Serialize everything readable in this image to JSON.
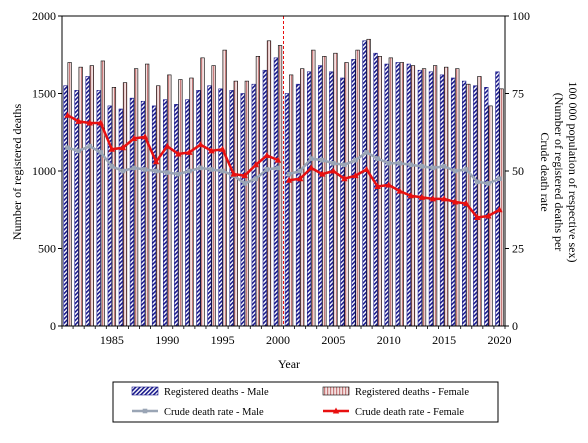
{
  "chart_data": {
    "type": "bar",
    "x": [
      1981,
      1982,
      1983,
      1984,
      1985,
      1986,
      1987,
      1988,
      1989,
      1990,
      1991,
      1992,
      1993,
      1994,
      1995,
      1996,
      1997,
      1998,
      1999,
      2000,
      2001,
      2002,
      2003,
      2004,
      2005,
      2006,
      2007,
      2008,
      2009,
      2010,
      2011,
      2012,
      2013,
      2014,
      2015,
      2016,
      2017,
      2018,
      2019,
      2020
    ],
    "xlabel": "Year",
    "ylabel": "Number of registered deaths",
    "y2label_line1": "Crude death rate",
    "y2label_line2": "(Number of registered deaths per",
    "y2label_line3": "100 000 population of respective sex)",
    "ylim": [
      0,
      2000
    ],
    "y2lim": [
      0,
      100
    ],
    "xticks": [
      1985,
      1990,
      1995,
      2000,
      2005,
      2010,
      2015,
      2020
    ],
    "yticks": [
      0,
      500,
      1000,
      1500,
      2000
    ],
    "y2ticks": [
      0,
      25,
      50,
      75,
      100
    ],
    "vline_x": 2000.5,
    "grid": false,
    "legend_position": "bottom",
    "series": [
      {
        "name": "Registered deaths - Male",
        "kind": "bar",
        "axis": "left",
        "color": "#1a1a8c",
        "values": [
          1550,
          1520,
          1610,
          1520,
          1420,
          1400,
          1470,
          1450,
          1420,
          1460,
          1430,
          1460,
          1520,
          1550,
          1530,
          1520,
          1500,
          1560,
          1650,
          1730,
          1500,
          1560,
          1640,
          1680,
          1640,
          1600,
          1720,
          1840,
          1760,
          1690,
          1700,
          1690,
          1650,
          1640,
          1620,
          1600,
          1580,
          1550,
          1540,
          1640
        ]
      },
      {
        "name": "Registered deaths - Female",
        "kind": "bar",
        "axis": "left",
        "color": "#c77b7b",
        "values": [
          1700,
          1670,
          1680,
          1710,
          1540,
          1570,
          1660,
          1690,
          1550,
          1620,
          1590,
          1600,
          1730,
          1680,
          1780,
          1580,
          1580,
          1740,
          1840,
          1810,
          1620,
          1660,
          1780,
          1740,
          1760,
          1700,
          1780,
          1850,
          1740,
          1730,
          1700,
          1680,
          1660,
          1680,
          1670,
          1660,
          1560,
          1610,
          1420,
          1530
        ]
      },
      {
        "name": "Crude death rate - Male",
        "kind": "line",
        "axis": "right",
        "color": "#9aa5b5",
        "values": [
          57.5,
          56.5,
          58,
          56,
          51.5,
          50,
          51,
          50.5,
          50,
          49.5,
          49,
          50,
          51,
          50.5,
          50,
          48.5,
          46,
          47.5,
          50.5,
          51,
          49,
          50,
          54,
          53.5,
          52.5,
          52,
          53.5,
          56,
          54,
          52.5,
          52.5,
          52,
          51.5,
          51,
          51.5,
          50,
          50.5,
          46.5,
          46,
          47.5
        ]
      },
      {
        "name": "Crude death rate - Female",
        "kind": "line",
        "axis": "right",
        "color": "#e81010",
        "values": [
          68,
          66,
          65.5,
          65.5,
          57,
          57.5,
          60.5,
          61,
          53,
          58,
          55.5,
          56,
          58.5,
          56.5,
          57,
          49,
          48.5,
          52,
          55,
          53.5,
          47,
          47.5,
          51,
          49,
          50,
          47.5,
          48.5,
          50.5,
          45,
          45.5,
          43.5,
          42,
          41.5,
          41,
          41,
          40,
          39.5,
          35,
          35.5,
          37.5
        ]
      }
    ]
  }
}
